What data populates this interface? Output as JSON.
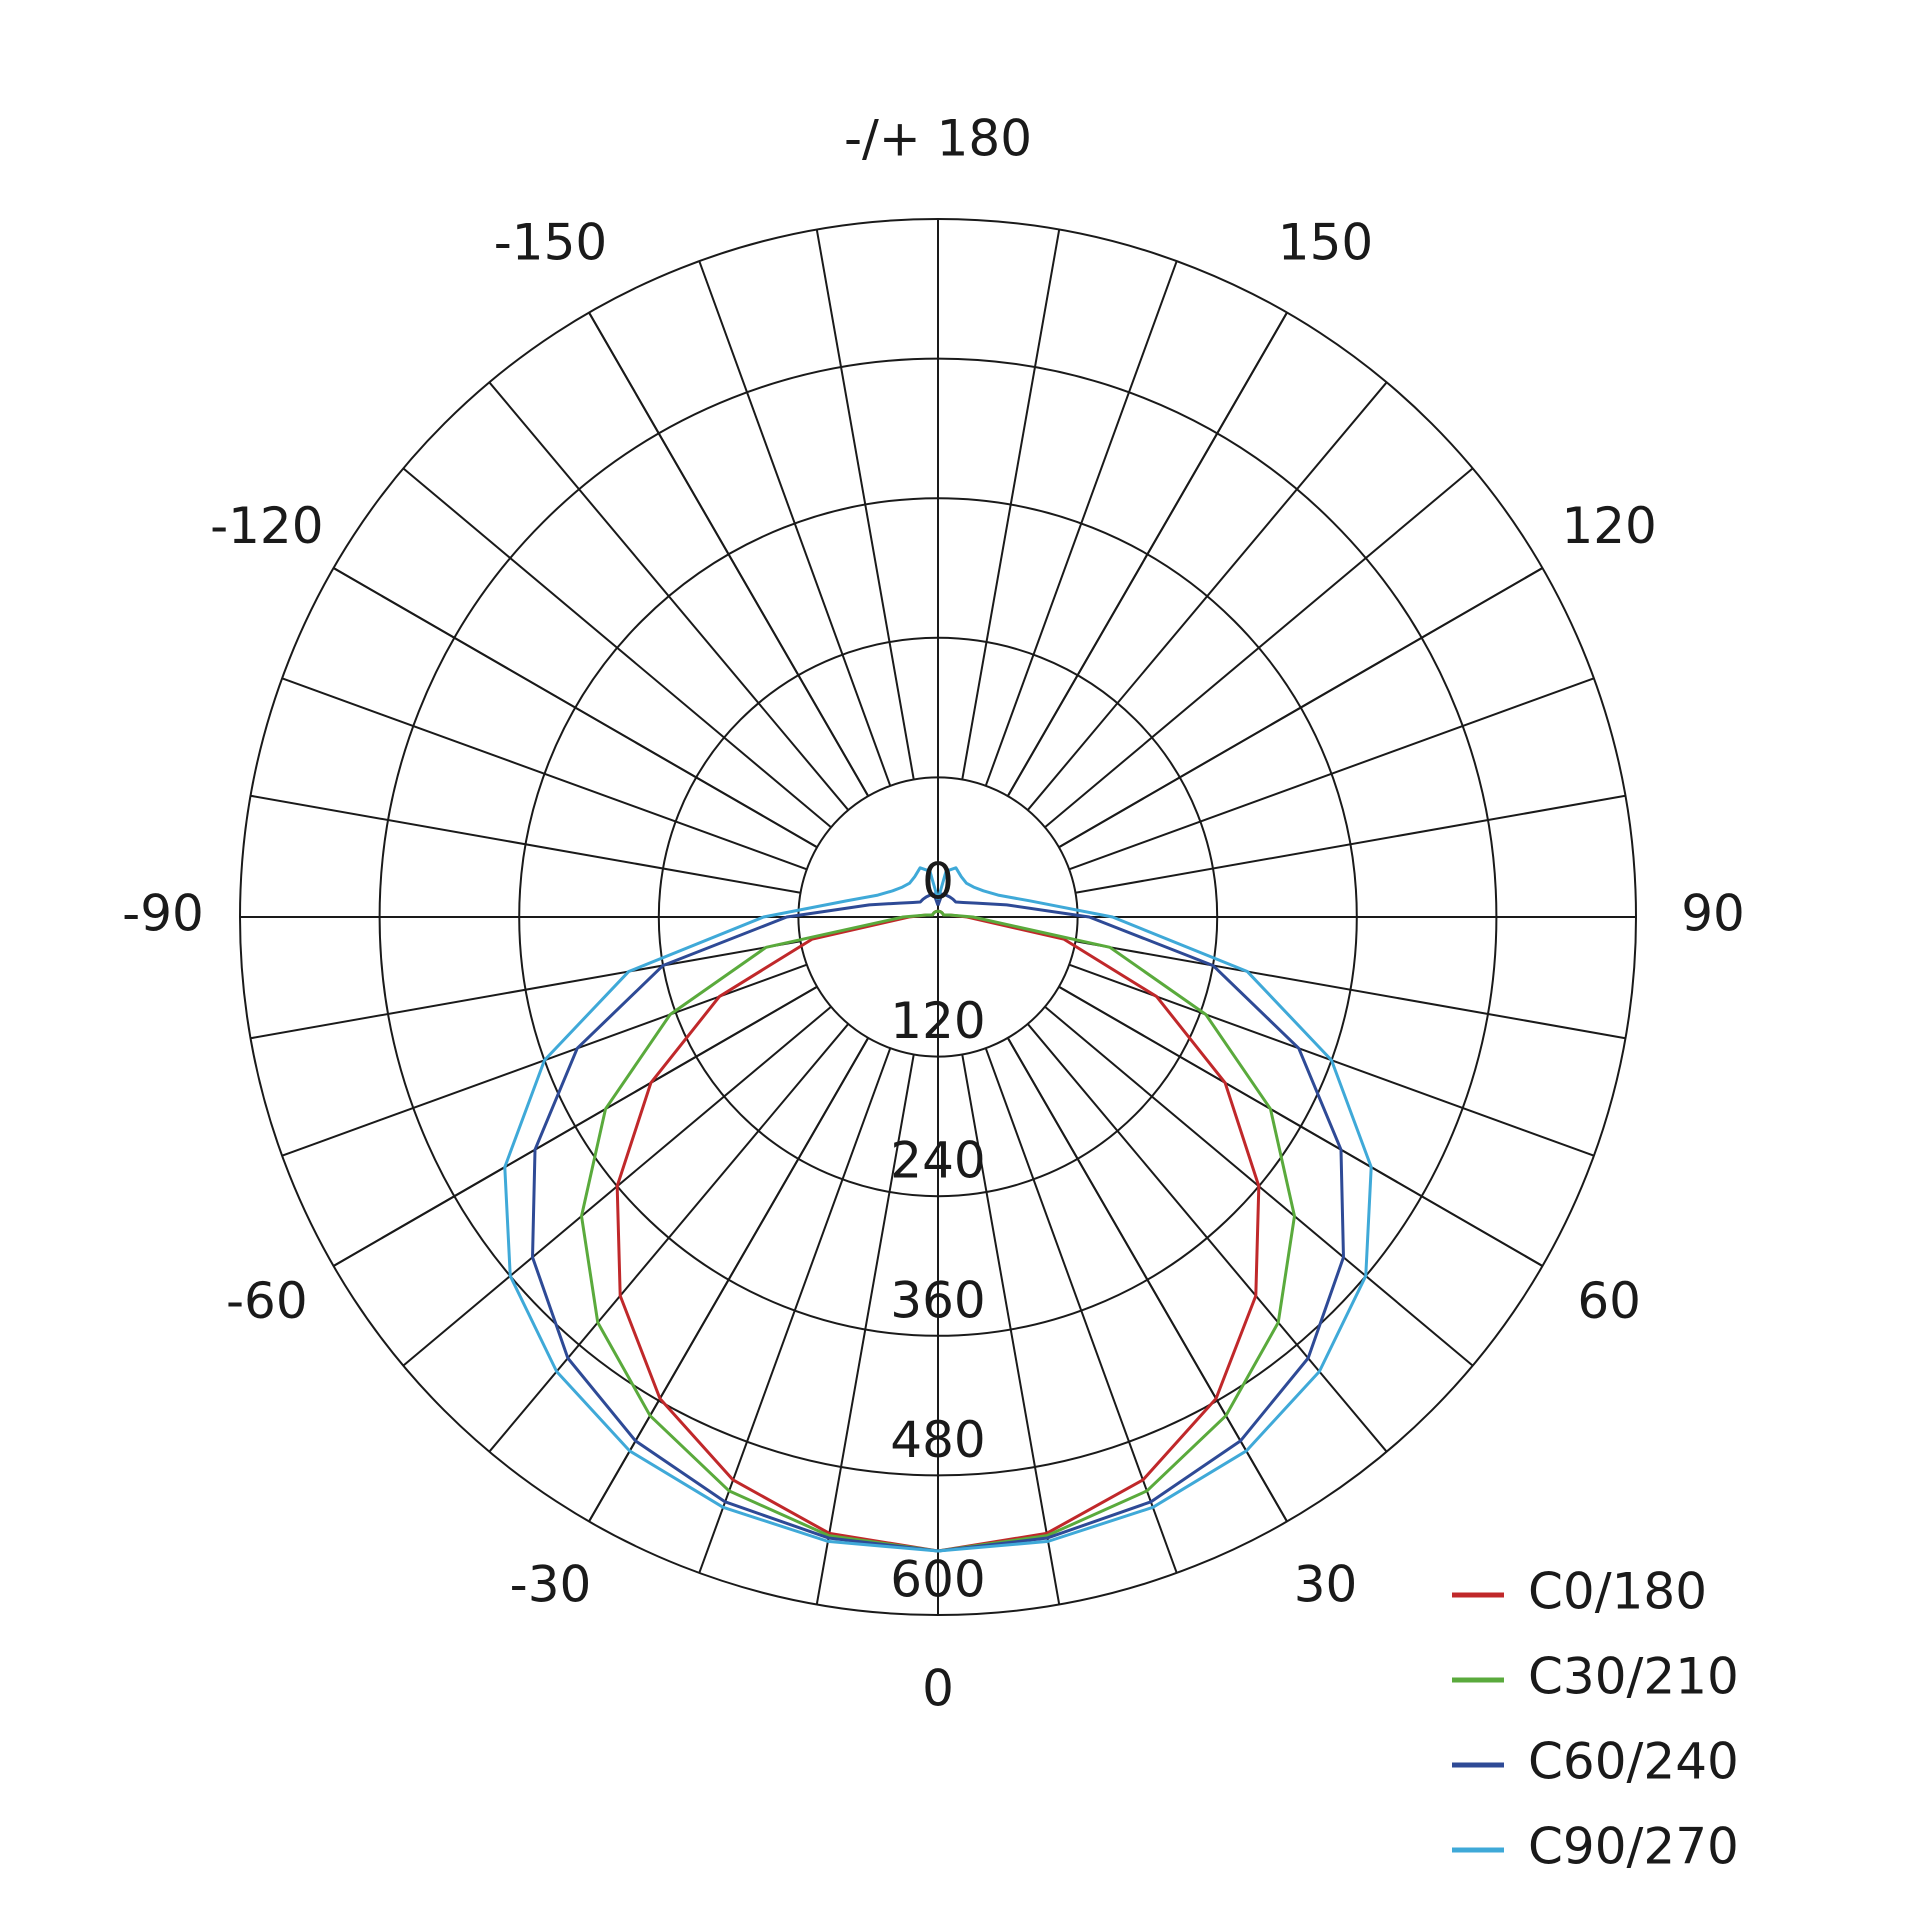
{
  "chart_data": {
    "type": "polar",
    "x": [
      -180,
      -170,
      -160,
      -150,
      -140,
      -130,
      -120,
      -110,
      -100,
      -90,
      -80,
      -70,
      -60,
      -50,
      -40,
      -30,
      -20,
      -10,
      0,
      10,
      20,
      30,
      40,
      50,
      60,
      70,
      80,
      90,
      100,
      110,
      120,
      130,
      140,
      150,
      160,
      170,
      180
    ],
    "series": [
      {
        "name": "C0/180",
        "color": "#c0282a",
        "values": [
          5,
          5,
          5,
          5,
          5,
          5,
          5,
          5,
          10,
          25,
          110,
          200,
          285,
          360,
          425,
          478,
          515,
          538,
          545,
          538,
          515,
          478,
          425,
          360,
          285,
          200,
          110,
          25,
          10,
          5,
          5,
          5,
          5,
          5,
          5,
          5,
          5
        ]
      },
      {
        "name": "C30/210",
        "color": "#5aaa3c",
        "values": [
          5,
          5,
          5,
          5,
          5,
          5,
          5,
          5,
          10,
          30,
          150,
          245,
          330,
          400,
          455,
          495,
          525,
          540,
          545,
          540,
          525,
          495,
          455,
          400,
          330,
          245,
          150,
          30,
          10,
          5,
          5,
          5,
          5,
          5,
          5,
          5,
          5
        ]
      },
      {
        "name": "C60/240",
        "color": "#2e4a96",
        "values": [
          10,
          20,
          20,
          20,
          20,
          20,
          25,
          35,
          60,
          130,
          240,
          330,
          400,
          455,
          495,
          520,
          535,
          542,
          545,
          542,
          535,
          520,
          495,
          455,
          400,
          330,
          240,
          130,
          60,
          35,
          25,
          20,
          20,
          20,
          20,
          20,
          10
        ]
      },
      {
        "name": "C90/270",
        "color": "#3fa9d8",
        "values": [
          15,
          40,
          45,
          40,
          38,
          40,
          45,
          55,
          80,
          150,
          270,
          360,
          430,
          480,
          510,
          530,
          540,
          545,
          545,
          545,
          540,
          530,
          510,
          480,
          430,
          360,
          270,
          150,
          80,
          55,
          45,
          40,
          38,
          40,
          45,
          40,
          15
        ]
      }
    ],
    "rlim": [
      0,
      600
    ],
    "rticks": [
      0,
      120,
      240,
      360,
      480,
      600
    ],
    "angle_ticks": [
      {
        "value": 180,
        "label": "-/+ 180"
      },
      -150,
      150,
      -120,
      120,
      -90,
      90,
      -60,
      60,
      -30,
      30,
      0
    ],
    "grid": true,
    "legend": "bottom-right"
  }
}
